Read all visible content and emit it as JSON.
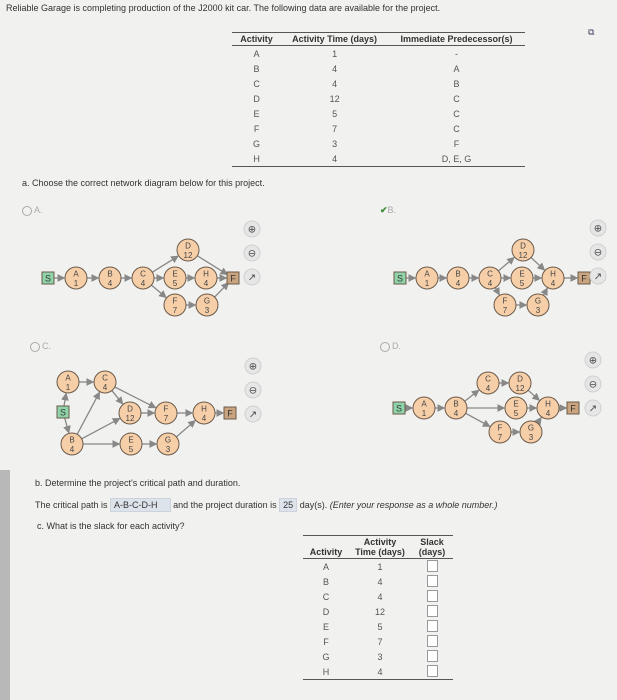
{
  "intro": "Reliable Garage is completing production of the J2000 kit car. The following data are available for the project.",
  "table": {
    "headers": [
      "Activity",
      "Activity Time (days)",
      "Immediate Predecessor(s)"
    ],
    "rows": [
      [
        "A",
        "1",
        "-"
      ],
      [
        "B",
        "4",
        "A"
      ],
      [
        "C",
        "4",
        "B"
      ],
      [
        "D",
        "12",
        "C"
      ],
      [
        "E",
        "5",
        "C"
      ],
      [
        "F",
        "7",
        "C"
      ],
      [
        "G",
        "3",
        "F"
      ],
      [
        "H",
        "4",
        "D, E, G"
      ]
    ]
  },
  "part_a": {
    "question": "a. Choose the correct network diagram below for this project.",
    "selected": "B",
    "options": [
      {
        "label": "A.",
        "edges": [
          [
            "S",
            "A"
          ],
          [
            "A",
            "B"
          ],
          [
            "B",
            "C"
          ],
          [
            "C",
            "D"
          ],
          [
            "C",
            "E"
          ],
          [
            "C",
            "F"
          ],
          [
            "D",
            "Fin"
          ],
          [
            "E",
            "H"
          ],
          [
            "H",
            "Fin"
          ],
          [
            "F",
            "G"
          ],
          [
            "G",
            "Fin"
          ]
        ]
      },
      {
        "label": "B.",
        "edges": [
          [
            "S",
            "A"
          ],
          [
            "A",
            "B"
          ],
          [
            "B",
            "C"
          ],
          [
            "C",
            "D"
          ],
          [
            "C",
            "E"
          ],
          [
            "C",
            "F"
          ],
          [
            "D",
            "H"
          ],
          [
            "E",
            "H"
          ],
          [
            "F",
            "G"
          ],
          [
            "G",
            "H"
          ],
          [
            "H",
            "Fin"
          ]
        ]
      },
      {
        "label": "C.",
        "edges": [
          [
            "S",
            "A"
          ],
          [
            "S",
            "B"
          ],
          [
            "A",
            "C"
          ],
          [
            "B",
            "C"
          ],
          [
            "B",
            "D"
          ],
          [
            "B",
            "E"
          ],
          [
            "C",
            "D"
          ],
          [
            "C",
            "F"
          ],
          [
            "D",
            "F"
          ],
          [
            "F",
            "H"
          ],
          [
            "E",
            "G"
          ],
          [
            "G",
            "H"
          ],
          [
            "H",
            "Fin"
          ]
        ]
      },
      {
        "label": "D.",
        "edges": [
          [
            "S",
            "A"
          ],
          [
            "A",
            "B"
          ],
          [
            "B",
            "C"
          ],
          [
            "B",
            "E"
          ],
          [
            "B",
            "F"
          ],
          [
            "C",
            "D"
          ],
          [
            "D",
            "H"
          ],
          [
            "E",
            "H"
          ],
          [
            "F",
            "G"
          ],
          [
            "G",
            "H"
          ],
          [
            "H",
            "Fin"
          ]
        ]
      }
    ],
    "nodes": {
      "A": "1",
      "B": "4",
      "C": "4",
      "D": "12",
      "E": "5",
      "F": "7",
      "G": "3",
      "H": "4"
    },
    "start_label": "S",
    "finish_label": "F",
    "colors": {
      "node_fill": "#f6cfa8",
      "node_stroke": "#6b5a4a",
      "start_fill": "#8fd3a8",
      "finish_fill": "#c9a47e",
      "edge": "#888888"
    },
    "icons": [
      "zoom-in-icon",
      "zoom-out-icon",
      "external-link-icon"
    ]
  },
  "part_b": {
    "question": "b. Determine the project's critical path and duration.",
    "prefix": "The critical path is",
    "critical_path": "A-B-C-D-H",
    "middle": "and the project duration is",
    "duration": "25",
    "suffix": "day(s).",
    "hint": "(Enter your response as a whole number.)"
  },
  "part_c": {
    "question": "c. What is the slack for each activity?",
    "headers": [
      "Activity",
      "Activity Time (days)",
      "Slack (days)"
    ],
    "rows": [
      [
        "A",
        "1"
      ],
      [
        "B",
        "4"
      ],
      [
        "C",
        "4"
      ],
      [
        "D",
        "12"
      ],
      [
        "E",
        "5"
      ],
      [
        "F",
        "7"
      ],
      [
        "G",
        "3"
      ],
      [
        "H",
        "4"
      ]
    ]
  }
}
